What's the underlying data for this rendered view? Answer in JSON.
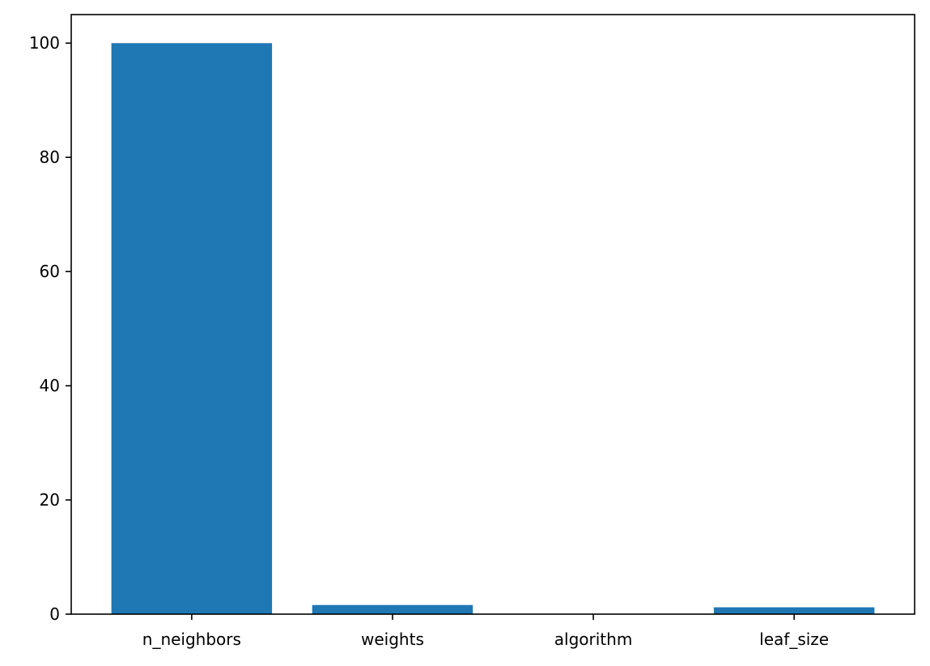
{
  "chart_data": {
    "type": "bar",
    "title": "",
    "xlabel": "",
    "ylabel": "",
    "categories": [
      "n_neighbors",
      "weights",
      "algorithm",
      "leaf_size"
    ],
    "values": [
      100,
      1.6,
      0.05,
      1.2
    ],
    "ylim": [
      0,
      105
    ],
    "yticks": [
      0,
      20,
      40,
      60,
      80,
      100
    ],
    "grid": false,
    "legend": "none",
    "bar_color": "#1f77b4"
  }
}
